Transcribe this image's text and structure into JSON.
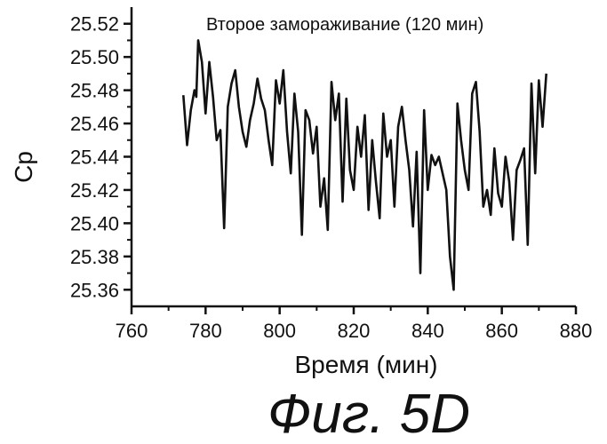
{
  "chart_data": {
    "type": "line",
    "annotation": "Второе замораживание (120 мин)",
    "xlabel": "Время (мин)",
    "ylabel": "Cp",
    "caption": "Фиг. 5D",
    "xlim": [
      760,
      880
    ],
    "ylim": [
      25.35,
      25.53
    ],
    "x_ticks": [
      "760",
      "780",
      "800",
      "820",
      "840",
      "860",
      "880"
    ],
    "y_ticks": [
      "25.36",
      "25.38",
      "25.40",
      "25.42",
      "25.44",
      "25.46",
      "25.48",
      "25.50",
      "25.52"
    ],
    "grid": false,
    "line_color": "#111111",
    "series": [
      {
        "x": [
          774,
          775,
          776,
          777,
          777.5,
          778,
          779,
          780,
          781,
          782,
          783,
          784,
          785,
          786,
          787,
          788,
          789,
          790,
          791,
          792,
          793,
          794,
          795,
          796,
          797,
          798,
          799,
          800,
          801,
          802,
          803,
          804,
          805,
          806,
          807,
          808,
          809,
          810,
          811,
          812,
          813,
          814,
          815,
          816,
          817,
          818,
          819,
          820,
          821,
          822,
          823,
          824,
          825,
          826,
          827,
          828,
          829,
          830,
          831,
          832,
          833,
          834,
          835,
          836,
          837,
          838,
          839,
          840,
          841,
          842,
          843,
          844,
          845,
          846,
          847,
          848,
          849,
          850,
          851,
          852,
          853,
          854,
          855,
          856,
          857,
          858,
          859,
          860,
          861,
          862,
          863,
          864,
          865,
          866,
          867,
          868,
          869,
          870,
          871,
          872
        ],
        "y": [
          25.477,
          25.447,
          25.468,
          25.48,
          25.476,
          25.51,
          25.497,
          25.466,
          25.497,
          25.476,
          25.45,
          25.456,
          25.397,
          25.47,
          25.484,
          25.492,
          25.47,
          25.455,
          25.446,
          25.462,
          25.472,
          25.487,
          25.475,
          25.468,
          25.45,
          25.435,
          25.486,
          25.472,
          25.492,
          25.455,
          25.43,
          25.478,
          25.455,
          25.393,
          25.468,
          25.462,
          25.442,
          25.458,
          25.41,
          25.427,
          25.396,
          25.485,
          25.462,
          25.478,
          25.413,
          25.475,
          25.432,
          25.42,
          25.458,
          25.44,
          25.465,
          25.408,
          25.45,
          25.425,
          25.403,
          25.466,
          25.44,
          25.45,
          25.41,
          25.458,
          25.47,
          25.45,
          25.432,
          25.398,
          25.443,
          25.37,
          25.468,
          25.42,
          25.441,
          25.435,
          25.44,
          25.43,
          25.42,
          25.38,
          25.36,
          25.472,
          25.45,
          25.432,
          25.42,
          25.478,
          25.485,
          25.455,
          25.41,
          25.42,
          25.405,
          25.445,
          25.418,
          25.41,
          25.44,
          25.425,
          25.39,
          25.432,
          25.438,
          25.445,
          25.387,
          25.484,
          25.43,
          25.486,
          25.458,
          25.49
        ]
      }
    ]
  }
}
